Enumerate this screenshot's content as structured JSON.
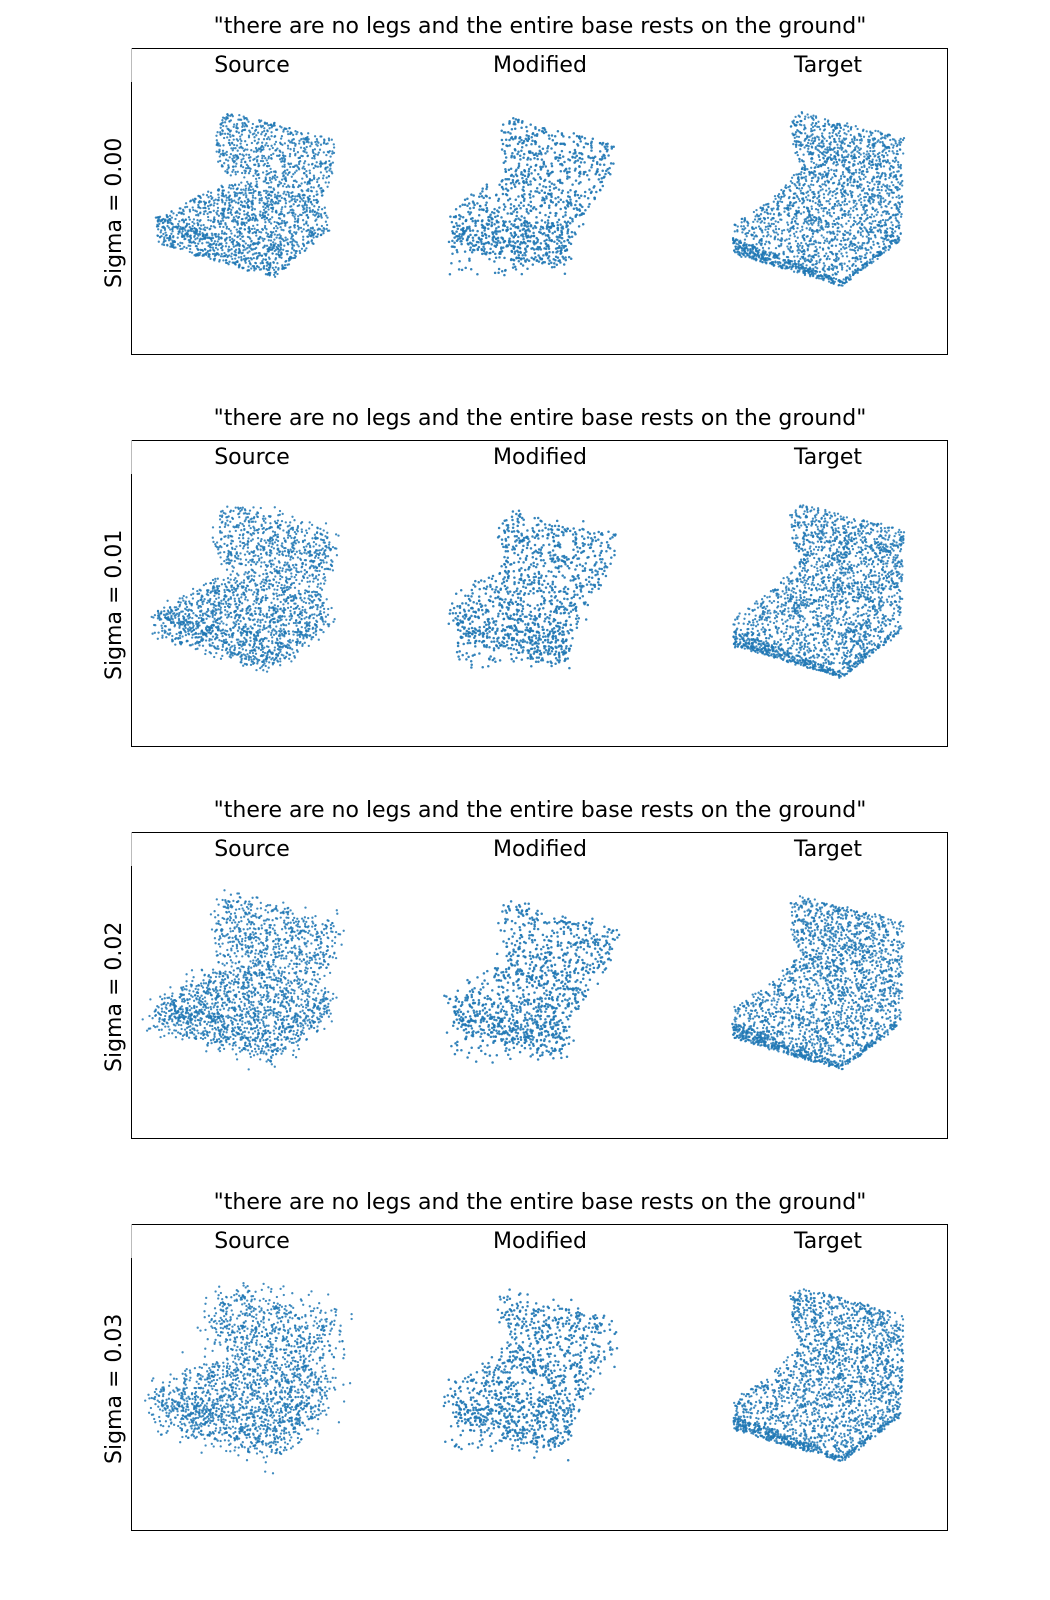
{
  "figure": {
    "title": "\"there are no legs and the entire base rests on the ground\"",
    "columns": [
      "Source",
      "Modified",
      "Target"
    ],
    "point_color": "#1f77b4",
    "rows": [
      {
        "label": "Sigma = 0.00",
        "sigma": 0.0
      },
      {
        "label": "Sigma = 0.01",
        "sigma": 0.01
      },
      {
        "label": "Sigma = 0.02",
        "sigma": 0.02
      },
      {
        "label": "Sigma = 0.03",
        "sigma": 0.03
      }
    ]
  }
}
